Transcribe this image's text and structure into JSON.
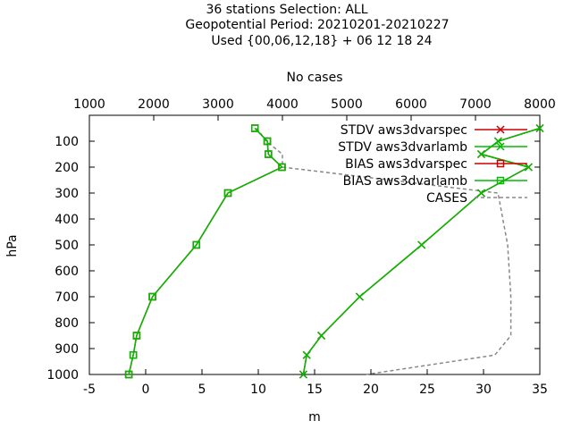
{
  "chart_data": {
    "type": "line",
    "title": [
      "36 stations Selection: ALL",
      "Geopotential  Period: 20210201-20210227",
      "Used {00,06,12,18} + 06 12 18 24"
    ],
    "xlabel": "m",
    "ylabel": "hPa",
    "x2label": "No cases",
    "xlim": [
      -5,
      35
    ],
    "x2lim": [
      1000,
      8000
    ],
    "ylim": [
      1000,
      0
    ],
    "x_ticks": [
      "-5",
      "0",
      "5",
      "10",
      "15",
      "20",
      "25",
      "30",
      "35"
    ],
    "x2_ticks": [
      "1000",
      "2000",
      "3000",
      "4000",
      "5000",
      "6000",
      "7000",
      "8000"
    ],
    "y_ticks": [
      "100",
      "200",
      "300",
      "400",
      "500",
      "600",
      "700",
      "800",
      "900",
      "1000"
    ],
    "legend_position": "top-right",
    "levels": [
      50,
      100,
      150,
      200,
      300,
      500,
      700,
      850,
      925,
      1000
    ],
    "series": [
      {
        "name": "STDV aws3dvarspec",
        "marker": "x",
        "color": "#cc0000",
        "values": [
          35.0,
          31.3,
          29.8,
          34.0,
          29.8,
          24.5,
          19.0,
          15.6,
          14.3,
          14.0
        ]
      },
      {
        "name": "STDV aws3dvarlamb",
        "marker": "x",
        "color": "#00bb00",
        "values": [
          35.0,
          31.3,
          29.8,
          34.0,
          29.8,
          24.5,
          19.0,
          15.6,
          14.3,
          14.0
        ]
      },
      {
        "name": "BIAS aws3dvarspec",
        "marker": "square",
        "color": "#cc0000",
        "values": [
          9.7,
          10.8,
          10.9,
          12.1,
          7.3,
          4.5,
          0.6,
          -0.8,
          -1.1,
          -1.5
        ]
      },
      {
        "name": "BIAS aws3dvarlamb",
        "marker": "square",
        "color": "#00bb00",
        "values": [
          9.7,
          10.8,
          10.9,
          12.1,
          7.3,
          4.5,
          0.6,
          -0.8,
          -1.1,
          -1.5
        ]
      },
      {
        "name": "CASES",
        "marker": "none",
        "color": "#888888",
        "axis": "x2",
        "values": [
          3600,
          3750,
          4000,
          4000,
          7350,
          7500,
          7550,
          7550,
          7300,
          5300
        ]
      }
    ]
  }
}
